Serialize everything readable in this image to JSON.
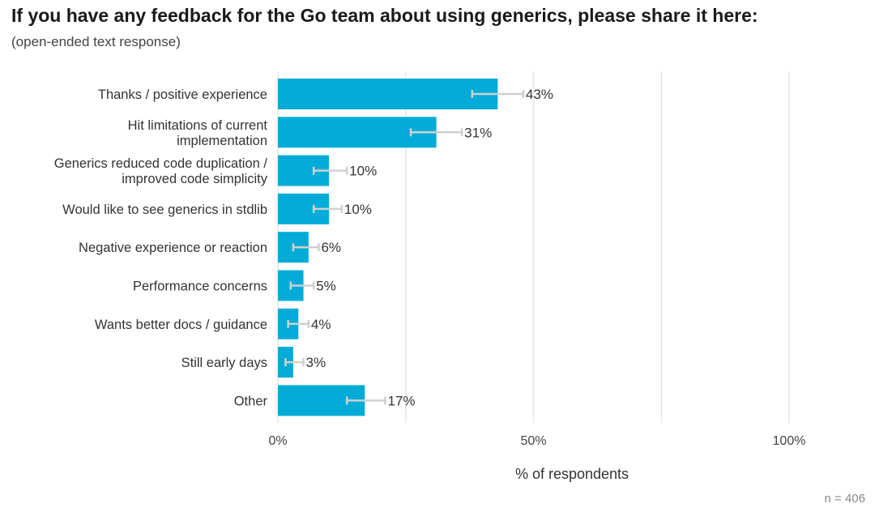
{
  "header": {
    "title": "If you have any feedback for the Go team about using generics, please share it here:",
    "subtitle": "(open-ended text response)"
  },
  "footer": {
    "n_label": "n =  406"
  },
  "colors": {
    "bar": "#00acd7",
    "error_bar": "#d0d0d0",
    "grid": "#e6e6e6"
  },
  "chart_data": {
    "type": "bar",
    "orientation": "horizontal",
    "title": "If you have any feedback for the Go team about using generics, please share it here:",
    "subtitle": "(open-ended text response)",
    "xlabel": "% of respondents",
    "ylabel": "",
    "xlim": [
      0,
      100
    ],
    "x_ticks": [
      0,
      50,
      100
    ],
    "x_tick_labels": [
      "0%",
      "50%",
      "100%"
    ],
    "grid": true,
    "categories": [
      [
        "Thanks / positive experience"
      ],
      [
        "Hit limitations of current",
        "implementation"
      ],
      [
        "Generics reduced code duplication /",
        "improved code simplicity"
      ],
      [
        "Would like to see generics in stdlib"
      ],
      [
        "Negative experience or reaction"
      ],
      [
        "Performance concerns"
      ],
      [
        "Wants better docs / guidance"
      ],
      [
        "Still early days"
      ],
      [
        "Other"
      ]
    ],
    "values": [
      43,
      31,
      10,
      10,
      6,
      5,
      4,
      3,
      17
    ],
    "value_labels": [
      "43%",
      "31%",
      "10%",
      "10%",
      "6%",
      "5%",
      "4%",
      "3%",
      "17%"
    ],
    "error_low": [
      38,
      26,
      7,
      7,
      3,
      2.5,
      2,
      1.5,
      13.5
    ],
    "error_high": [
      48,
      36,
      13.5,
      12.5,
      8,
      7,
      6,
      5,
      21
    ],
    "n": 406
  }
}
